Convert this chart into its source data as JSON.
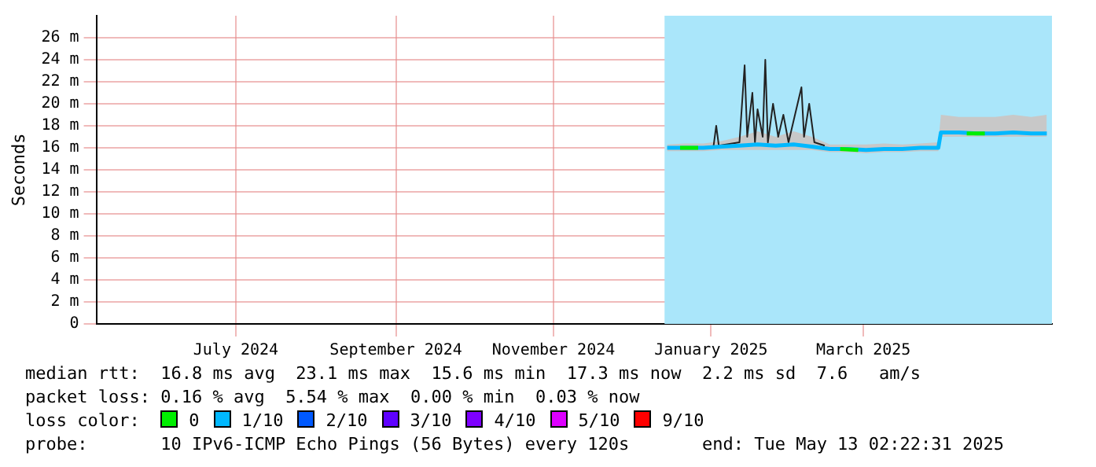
{
  "chart_data": {
    "type": "line",
    "ylabel": "Seconds",
    "legend_title": "loss color:",
    "legend": "bottom",
    "grid": true,
    "marker": "none",
    "xlim": [
      "2024-05-08",
      "2025-05-13"
    ],
    "xticks": [
      {
        "value": "2024-07-01",
        "label": "July 2024"
      },
      {
        "value": "2024-09-01",
        "label": "September 2024"
      },
      {
        "value": "2024-11-01",
        "label": "November 2024"
      },
      {
        "value": "2025-01-01",
        "label": "January 2025"
      },
      {
        "value": "2025-03-01",
        "label": "March 2025"
      }
    ],
    "ylim": [
      0,
      28
    ],
    "yticks": [
      0,
      {
        "value": 2,
        "label": "2 m"
      },
      {
        "value": 4,
        "label": "4 m"
      },
      {
        "value": 6,
        "label": "6 m"
      },
      {
        "value": 8,
        "label": "8 m"
      },
      {
        "value": 10,
        "label": "10 m"
      },
      {
        "value": 12,
        "label": "12 m"
      },
      {
        "value": 14,
        "label": "14 m"
      },
      {
        "value": 16,
        "label": "16 m"
      },
      {
        "value": 18,
        "label": "18 m"
      },
      {
        "value": 20,
        "label": "20 m"
      },
      {
        "value": 22,
        "label": "22 m"
      },
      {
        "value": 24,
        "label": "24 m"
      },
      {
        "value": 26,
        "label": "26 m"
      }
    ],
    "bands": [
      {
        "axis": "x",
        "from": "2024-12-14",
        "to": "2025-05-13",
        "color": "#aae6fa"
      }
    ],
    "series": [
      {
        "color": "#222222",
        "x": [
          "2025-01-02",
          "2025-01-03",
          "2025-01-04",
          "2025-01-12",
          "2025-01-14",
          "2025-01-15",
          "2025-01-17",
          "2025-01-18",
          "2025-01-19",
          "2025-01-21",
          "2025-01-22",
          "2025-01-23",
          "2025-01-25",
          "2025-01-27",
          "2025-01-29",
          "2025-01-31",
          "2025-02-02",
          "2025-02-04",
          "2025-02-05",
          "2025-02-06",
          "2025-02-08",
          "2025-02-10",
          "2025-02-14"
        ],
        "values": [
          16.2,
          18,
          16.2,
          16.5,
          23.5,
          17,
          21,
          16.5,
          19.5,
          17,
          24,
          16.5,
          20,
          17,
          19,
          16.5,
          18.5,
          20.5,
          21.5,
          17,
          20,
          16.5,
          16.2
        ]
      },
      {
        "name": "1/10",
        "color": "#00b8ff",
        "x": [
          "2024-12-15",
          "2024-12-22",
          "2024-12-29",
          "2025-01-05",
          "2025-01-12",
          "2025-01-19",
          "2025-01-26",
          "2025-02-02",
          "2025-02-09",
          "2025-02-16",
          "2025-02-23",
          "2025-03-02",
          "2025-03-09",
          "2025-03-16",
          "2025-03-23",
          "2025-03-30",
          "2025-03-31",
          "2025-04-07",
          "2025-04-14",
          "2025-04-21",
          "2025-04-28",
          "2025-05-05",
          "2025-05-11"
        ],
        "values": [
          16,
          16,
          16,
          16.1,
          16.2,
          16.3,
          16.2,
          16.3,
          16.1,
          15.9,
          15.9,
          15.8,
          15.9,
          15.9,
          16,
          16,
          17.4,
          17.4,
          17.3,
          17.3,
          17.4,
          17.3,
          17.3
        ],
        "lower": [
          15.7,
          15.7,
          15.7,
          15.8,
          15.8,
          15.8,
          15.8,
          15.8,
          15.8,
          15.6,
          15.6,
          15.5,
          15.6,
          15.6,
          15.7,
          15.7,
          17,
          17,
          17,
          17,
          17,
          17,
          17
        ],
        "upper": [
          16.3,
          16.4,
          16.4,
          16.6,
          17,
          17.5,
          17,
          17.5,
          17,
          16.3,
          16.3,
          16.3,
          16.4,
          16.3,
          16.4,
          16.5,
          19,
          18.8,
          18.8,
          18.8,
          19,
          18.8,
          19
        ]
      },
      {
        "name": "0",
        "color": "#00ee00",
        "x": [
          "2024-12-20",
          "2024-12-27",
          "2024-12-28",
          "2025-02-20",
          "2025-02-27",
          "2025-02-28",
          "2025-04-10",
          "2025-04-17"
        ],
        "values": [
          16,
          16,
          null,
          15.9,
          15.8,
          null,
          17.3,
          17.3
        ]
      },
      {
        "name": "2/10",
        "color": "#0059ff"
      },
      {
        "name": "3/10",
        "color": "#5e00ff"
      },
      {
        "name": "4/10",
        "color": "#7e00ff"
      },
      {
        "name": "5/10",
        "color": "#dd00ff"
      },
      {
        "name": "9/10",
        "color": "#ff0000"
      }
    ],
    "annotations": [
      "median rtt:  16.8 ms avg  23.1 ms max  15.6 ms min  17.3 ms now  2.2 ms sd  7.6   am/s",
      "packet loss: 0.16 % avg  5.54 % max  0.00 % min  0.03 % now",
      "probe:       10 IPv6-ICMP Echo Pings (56 Bytes) every 120s       end: Tue May 13 02:22:31 2025"
    ]
  }
}
